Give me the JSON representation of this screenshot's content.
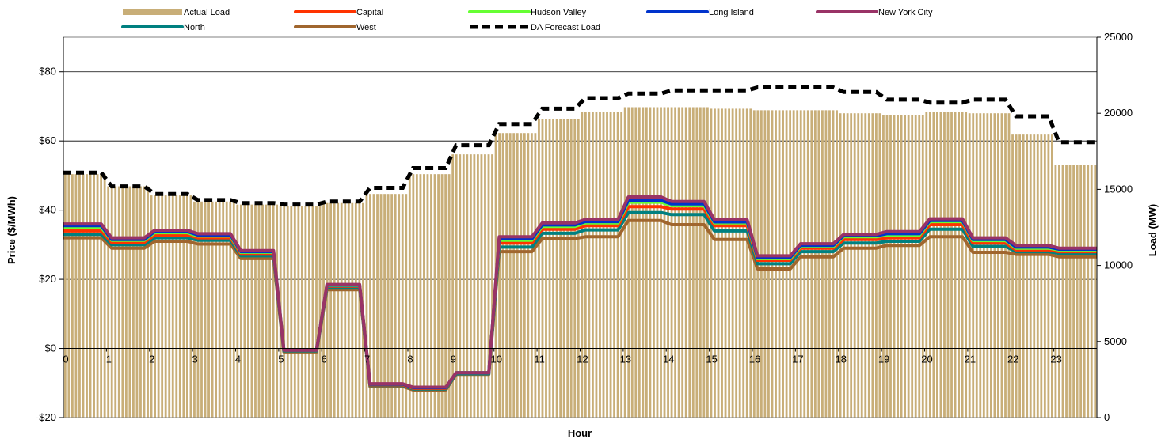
{
  "chart_data": {
    "type": "line",
    "title": "",
    "xlabel": "Hour",
    "ylabel_left": "Price ($/MWh)",
    "ylabel_right": "Load (MW)",
    "x_ticks": [
      "0",
      "1",
      "2",
      "3",
      "4",
      "5",
      "6",
      "7",
      "8",
      "9",
      "10",
      "11",
      "12",
      "13",
      "14",
      "15",
      "16",
      "17",
      "18",
      "19",
      "20",
      "21",
      "22",
      "23"
    ],
    "xlim": [
      0,
      24
    ],
    "ylim_left": [
      -20,
      90
    ],
    "ylim_right": [
      0,
      25000
    ],
    "y_ticks_left": [
      {
        "value": -20,
        "label": "-$20"
      },
      {
        "value": 0,
        "label": "$0"
      },
      {
        "value": 20,
        "label": "$20"
      },
      {
        "value": 40,
        "label": "$40"
      },
      {
        "value": 60,
        "label": "$60"
      },
      {
        "value": 80,
        "label": "$80"
      }
    ],
    "y_ticks_right": [
      {
        "value": 0,
        "label": "0"
      },
      {
        "value": 5000,
        "label": "5000"
      },
      {
        "value": 10000,
        "label": "10000"
      },
      {
        "value": 15000,
        "label": "15000"
      },
      {
        "value": 20000,
        "label": "20000"
      },
      {
        "value": 25000,
        "label": "25000"
      }
    ],
    "grid": "horizontal-left-axis",
    "legend_position": "top",
    "actual_load": {
      "name": "Actual Load",
      "color": "#C8AE78",
      "axis": "right",
      "values": [
        16000,
        15200,
        14600,
        14200,
        14000,
        13900,
        14100,
        14700,
        16000,
        17300,
        18700,
        19600,
        20100,
        20400,
        20400,
        20300,
        20200,
        20200,
        20000,
        19900,
        20100,
        20000,
        18600,
        16600
      ]
    },
    "forecast_load": {
      "name": "DA Forecast Load",
      "color": "#000000",
      "axis": "right",
      "values": [
        16100,
        15200,
        14700,
        14300,
        14100,
        14000,
        14200,
        15100,
        16400,
        17900,
        19300,
        20300,
        21000,
        21300,
        21500,
        21500,
        21700,
        21700,
        21400,
        20900,
        20700,
        20900,
        19800,
        18100
      ]
    },
    "series": [
      {
        "name": "Capital",
        "color": "#FF3300",
        "axis": "left",
        "values": [
          34,
          30.7,
          32.8,
          32,
          27.3,
          -0.5,
          18,
          -10.5,
          -11.5,
          -7,
          30.5,
          34.5,
          35.5,
          41,
          40.3,
          35.5,
          25.5,
          29,
          31.5,
          32,
          35.8,
          30.5,
          28.5,
          28
        ]
      },
      {
        "name": "Hudson Valley",
        "color": "#66FF33",
        "axis": "left",
        "values": [
          35,
          31.3,
          33.5,
          32.5,
          27.8,
          -0.5,
          18.2,
          -10.3,
          -11.3,
          -7,
          31.3,
          35.3,
          36.3,
          42.3,
          41.3,
          36.3,
          26,
          29.5,
          32.3,
          32.8,
          36.7,
          31.2,
          29,
          28.5
        ]
      },
      {
        "name": "Long Island",
        "color": "#0033CC",
        "axis": "left",
        "values": [
          35.5,
          31.5,
          33.8,
          32.8,
          28,
          -0.5,
          18.3,
          -10.3,
          -11.3,
          -7,
          31.7,
          35.7,
          36.7,
          42.8,
          41.8,
          36.6,
          26.3,
          29.8,
          32.6,
          33.2,
          37,
          31.5,
          29.3,
          28.7
        ]
      },
      {
        "name": "New York City",
        "color": "#993366",
        "axis": "left",
        "values": [
          36,
          32,
          34.2,
          33.2,
          28.3,
          -0.5,
          18.5,
          -10.2,
          -11.2,
          -7,
          32.3,
          36.3,
          37.3,
          43.8,
          42.5,
          37.2,
          26.8,
          30.3,
          33,
          33.8,
          37.5,
          32,
          29.8,
          29
        ]
      },
      {
        "name": "North",
        "color": "#008080",
        "axis": "left",
        "values": [
          33,
          30,
          32,
          31.3,
          26.8,
          -0.7,
          17.7,
          -10.7,
          -11.7,
          -7.3,
          29.3,
          33.3,
          34.3,
          39.3,
          38.7,
          34,
          24.5,
          28,
          30.5,
          31,
          34.5,
          29.5,
          28,
          27.5
        ]
      },
      {
        "name": "West",
        "color": "#A0662E",
        "axis": "left",
        "values": [
          32,
          29,
          31,
          30.2,
          26,
          -1,
          17,
          -11,
          -12,
          -7.5,
          28,
          31.8,
          32.3,
          37,
          35.8,
          31.5,
          23,
          26.5,
          29,
          29.8,
          32.3,
          27.8,
          27.2,
          26.5
        ]
      }
    ]
  }
}
